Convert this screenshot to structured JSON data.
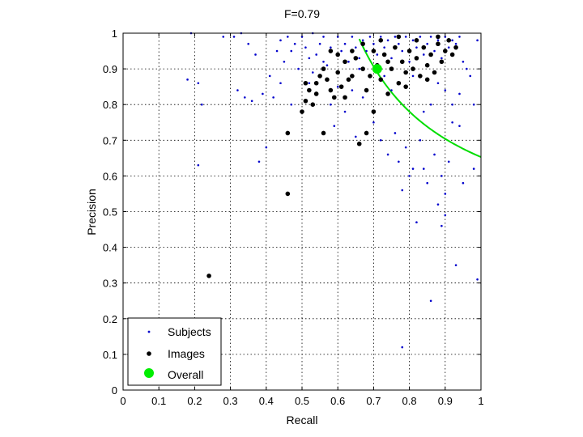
{
  "chart_data": {
    "type": "scatter",
    "title": "F=0.79",
    "xlabel": "Recall",
    "ylabel": "Precision",
    "xlim": [
      0,
      1
    ],
    "ylim": [
      0,
      1
    ],
    "grid": true,
    "legend_position": "bottom-left",
    "xticks": [
      "0",
      "0.1",
      "0.2",
      "0.3",
      "0.4",
      "0.5",
      "0.6",
      "0.7",
      "0.8",
      "0.9",
      "1"
    ],
    "yticks": [
      "0",
      "0.1",
      "0.2",
      "0.3",
      "0.4",
      "0.5",
      "0.6",
      "0.7",
      "0.8",
      "0.9",
      "1"
    ],
    "series": [
      {
        "name": "Subjects",
        "marker": "dot-small",
        "color": "#0000cc",
        "points": [
          [
            0.18,
            0.87
          ],
          [
            0.21,
            0.86
          ],
          [
            0.22,
            0.8
          ],
          [
            0.21,
            0.63
          ],
          [
            0.19,
            1.0
          ],
          [
            0.31,
            0.99
          ],
          [
            0.32,
            0.84
          ],
          [
            0.34,
            0.82
          ],
          [
            0.36,
            0.81
          ],
          [
            0.38,
            0.64
          ],
          [
            0.4,
            0.68
          ],
          [
            0.39,
            0.83
          ],
          [
            0.41,
            0.88
          ],
          [
            0.42,
            0.82
          ],
          [
            0.43,
            0.95
          ],
          [
            0.44,
            0.98
          ],
          [
            0.45,
            0.92
          ],
          [
            0.46,
            0.99
          ],
          [
            0.47,
            0.95
          ],
          [
            0.48,
            0.97
          ],
          [
            0.49,
            0.9
          ],
          [
            0.5,
            0.99
          ],
          [
            0.51,
            0.96
          ],
          [
            0.52,
            0.93
          ],
          [
            0.53,
            1.0
          ],
          [
            0.54,
            0.94
          ],
          [
            0.55,
            0.97
          ],
          [
            0.56,
            0.99
          ],
          [
            0.57,
            0.91
          ],
          [
            0.58,
            0.96
          ],
          [
            0.59,
            0.74
          ],
          [
            0.6,
            0.99
          ],
          [
            0.61,
            0.95
          ],
          [
            0.62,
            0.97
          ],
          [
            0.63,
            0.92
          ],
          [
            0.64,
            0.99
          ],
          [
            0.65,
            0.96
          ],
          [
            0.66,
            0.93
          ],
          [
            0.67,
            0.98
          ],
          [
            0.68,
            0.95
          ],
          [
            0.69,
            0.99
          ],
          [
            0.7,
            0.97
          ],
          [
            0.71,
            0.94
          ],
          [
            0.72,
            0.99
          ],
          [
            0.73,
            0.96
          ],
          [
            0.74,
            0.98
          ],
          [
            0.75,
            0.93
          ],
          [
            0.76,
            0.99
          ],
          [
            0.77,
            0.97
          ],
          [
            0.78,
            0.95
          ],
          [
            0.79,
            0.99
          ],
          [
            0.8,
            0.92
          ],
          [
            0.81,
            0.98
          ],
          [
            0.82,
            0.96
          ],
          [
            0.83,
            0.99
          ],
          [
            0.84,
            0.94
          ],
          [
            0.85,
            0.97
          ],
          [
            0.86,
            0.99
          ],
          [
            0.87,
            0.95
          ],
          [
            0.88,
            0.98
          ],
          [
            0.89,
            0.93
          ],
          [
            0.9,
            0.99
          ],
          [
            0.91,
            0.96
          ],
          [
            0.92,
            0.98
          ],
          [
            0.93,
            0.97
          ],
          [
            0.94,
            0.99
          ],
          [
            0.95,
            0.92
          ],
          [
            0.96,
            0.9
          ],
          [
            0.97,
            0.88
          ],
          [
            0.98,
            0.8
          ],
          [
            0.99,
            0.98
          ],
          [
            0.7,
            0.75
          ],
          [
            0.72,
            0.7
          ],
          [
            0.74,
            0.66
          ],
          [
            0.76,
            0.72
          ],
          [
            0.77,
            0.64
          ],
          [
            0.78,
            0.56
          ],
          [
            0.79,
            0.68
          ],
          [
            0.8,
            0.6
          ],
          [
            0.81,
            0.62
          ],
          [
            0.82,
            0.47
          ],
          [
            0.83,
            0.7
          ],
          [
            0.84,
            0.62
          ],
          [
            0.85,
            0.58
          ],
          [
            0.86,
            0.25
          ],
          [
            0.87,
            0.66
          ],
          [
            0.88,
            0.52
          ],
          [
            0.89,
            0.6
          ],
          [
            0.9,
            0.55
          ],
          [
            0.91,
            0.64
          ],
          [
            0.92,
            0.75
          ],
          [
            0.93,
            0.35
          ],
          [
            0.94,
            0.74
          ],
          [
            0.95,
            0.58
          ],
          [
            0.89,
            0.46
          ],
          [
            0.9,
            0.49
          ],
          [
            0.99,
            0.31
          ],
          [
            0.78,
            0.12
          ],
          [
            0.98,
            0.62
          ],
          [
            0.86,
            0.8
          ],
          [
            0.62,
            0.78
          ],
          [
            0.65,
            0.71
          ],
          [
            0.55,
            0.88
          ],
          [
            0.58,
            0.8
          ],
          [
            0.6,
            0.85
          ],
          [
            0.66,
            0.9
          ],
          [
            0.73,
            0.88
          ],
          [
            0.84,
            0.78
          ],
          [
            0.9,
            0.84
          ],
          [
            0.92,
            0.8
          ],
          [
            0.52,
            0.86
          ],
          [
            0.47,
            0.8
          ],
          [
            0.44,
            0.86
          ],
          [
            0.37,
            0.94
          ],
          [
            0.35,
            0.97
          ],
          [
            0.28,
            0.99
          ],
          [
            0.33,
            1.0
          ],
          [
            0.64,
            0.84
          ],
          [
            0.56,
            0.92
          ],
          [
            0.53,
            0.89
          ],
          [
            0.67,
            0.82
          ],
          [
            0.75,
            0.84
          ],
          [
            0.81,
            0.88
          ],
          [
            0.88,
            0.86
          ],
          [
            0.94,
            0.83
          ]
        ]
      },
      {
        "name": "Images",
        "marker": "dot-medium",
        "color": "#000000",
        "points": [
          [
            0.24,
            0.32
          ],
          [
            0.46,
            0.55
          ],
          [
            0.46,
            0.72
          ],
          [
            0.5,
            0.78
          ],
          [
            0.51,
            0.81
          ],
          [
            0.52,
            0.84
          ],
          [
            0.53,
            0.8
          ],
          [
            0.54,
            0.83
          ],
          [
            0.55,
            0.88
          ],
          [
            0.56,
            0.72
          ],
          [
            0.57,
            0.87
          ],
          [
            0.58,
            0.84
          ],
          [
            0.59,
            0.82
          ],
          [
            0.6,
            0.89
          ],
          [
            0.61,
            0.85
          ],
          [
            0.62,
            0.92
          ],
          [
            0.63,
            0.87
          ],
          [
            0.64,
            0.88
          ],
          [
            0.65,
            0.93
          ],
          [
            0.66,
            0.69
          ],
          [
            0.67,
            0.9
          ],
          [
            0.68,
            0.84
          ],
          [
            0.68,
            0.72
          ],
          [
            0.69,
            0.88
          ],
          [
            0.7,
            0.95
          ],
          [
            0.7,
            0.78
          ],
          [
            0.71,
            0.91
          ],
          [
            0.72,
            0.87
          ],
          [
            0.73,
            0.94
          ],
          [
            0.74,
            0.83
          ],
          [
            0.75,
            0.9
          ],
          [
            0.76,
            0.96
          ],
          [
            0.77,
            0.86
          ],
          [
            0.78,
            0.92
          ],
          [
            0.79,
            0.89
          ],
          [
            0.8,
            0.95
          ],
          [
            0.81,
            0.9
          ],
          [
            0.82,
            0.93
          ],
          [
            0.83,
            0.88
          ],
          [
            0.84,
            0.96
          ],
          [
            0.85,
            0.91
          ],
          [
            0.86,
            0.94
          ],
          [
            0.87,
            0.89
          ],
          [
            0.88,
            0.97
          ],
          [
            0.89,
            0.92
          ],
          [
            0.9,
            0.95
          ],
          [
            0.91,
            0.98
          ],
          [
            0.92,
            0.94
          ],
          [
            0.93,
            0.96
          ],
          [
            0.51,
            0.86
          ],
          [
            0.56,
            0.9
          ],
          [
            0.6,
            0.94
          ],
          [
            0.64,
            0.95
          ],
          [
            0.67,
            0.97
          ],
          [
            0.72,
            0.98
          ],
          [
            0.77,
            0.99
          ],
          [
            0.82,
            0.98
          ],
          [
            0.74,
            0.92
          ],
          [
            0.79,
            0.85
          ],
          [
            0.85,
            0.87
          ],
          [
            0.88,
            0.99
          ],
          [
            0.62,
            0.82
          ],
          [
            0.58,
            0.95
          ],
          [
            0.54,
            0.86
          ]
        ]
      },
      {
        "name": "Overall",
        "marker": "dot-large",
        "color": "#00ee00",
        "points": [
          [
            0.71,
            0.9
          ]
        ]
      }
    ],
    "curve": {
      "description_value": 0.79,
      "color": "#00dd00",
      "from_recall": 0.66,
      "to_recall": 1.0
    }
  }
}
